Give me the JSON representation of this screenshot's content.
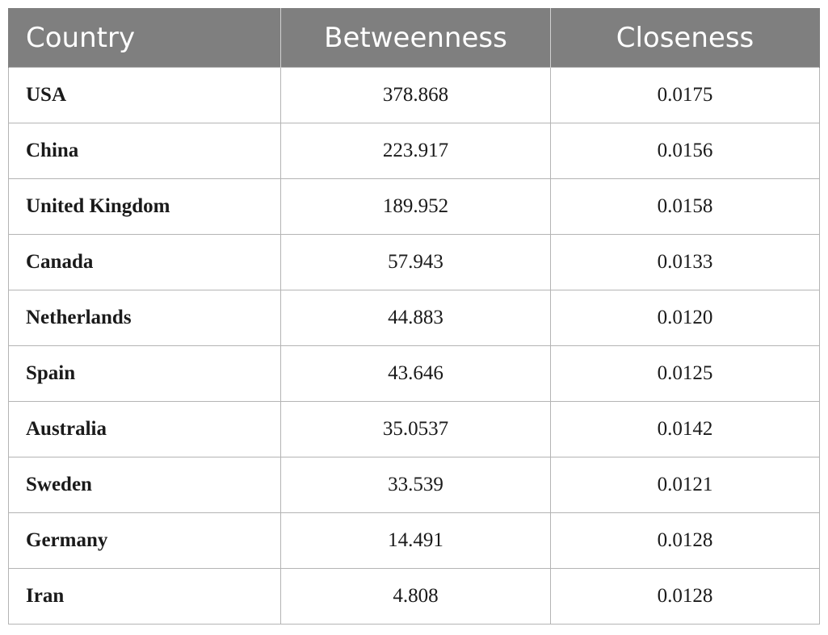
{
  "table": {
    "headers": [
      "Country",
      "Betweenness",
      "Closeness"
    ],
    "rows": [
      {
        "country": "USA",
        "betweenness": "378.868",
        "closeness": "0.0175"
      },
      {
        "country": "China",
        "betweenness": "223.917",
        "closeness": "0.0156"
      },
      {
        "country": "United Kingdom",
        "betweenness": "189.952",
        "closeness": "0.0158"
      },
      {
        "country": "Canada",
        "betweenness": "57.943",
        "closeness": "0.0133"
      },
      {
        "country": "Netherlands",
        "betweenness": "44.883",
        "closeness": "0.0120"
      },
      {
        "country": "Spain",
        "betweenness": "43.646",
        "closeness": "0.0125"
      },
      {
        "country": "Australia",
        "betweenness": "35.0537",
        "closeness": "0.0142"
      },
      {
        "country": "Sweden",
        "betweenness": "33.539",
        "closeness": "0.0121"
      },
      {
        "country": "Germany",
        "betweenness": "14.491",
        "closeness": "0.0128"
      },
      {
        "country": "Iran",
        "betweenness": "4.808",
        "closeness": "0.0128"
      }
    ]
  },
  "colors": {
    "header_bg": "#7f7f7f",
    "header_text": "#ffffff",
    "grid": "#b4b4b4"
  }
}
